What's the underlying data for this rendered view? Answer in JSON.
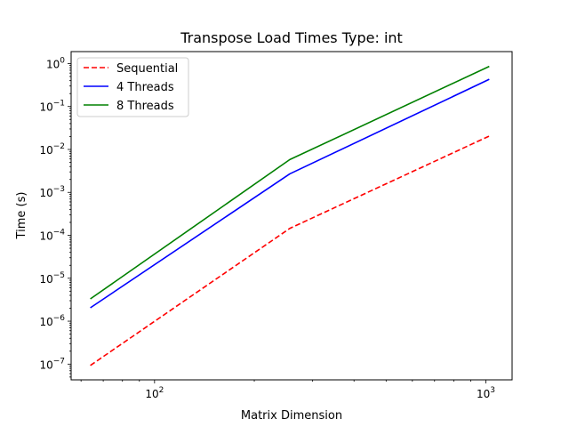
{
  "chart_data": {
    "type": "line",
    "title": "Transpose Load Times Type: int",
    "xlabel": "Matrix Dimension",
    "ylabel": "Time (s)",
    "xscale": "log",
    "yscale": "log",
    "xlim": [
      56,
      1200
    ],
    "ylim": [
      4.3e-08,
      1.9
    ],
    "x_ticks": [
      {
        "value": 100,
        "base": "10",
        "exp": "2"
      },
      {
        "value": 1000,
        "base": "10",
        "exp": "3"
      }
    ],
    "y_ticks": [
      {
        "value": 1e-07,
        "base": "10",
        "exp": "−7"
      },
      {
        "value": 1e-06,
        "base": "10",
        "exp": "−6"
      },
      {
        "value": 1e-05,
        "base": "10",
        "exp": "−5"
      },
      {
        "value": 0.0001,
        "base": "10",
        "exp": "−4"
      },
      {
        "value": 0.001,
        "base": "10",
        "exp": "−3"
      },
      {
        "value": 0.01,
        "base": "10",
        "exp": "−2"
      },
      {
        "value": 0.1,
        "base": "10",
        "exp": "−1"
      },
      {
        "value": 1,
        "base": "10",
        "exp": "0"
      }
    ],
    "x": [
      64,
      256,
      1024
    ],
    "series": [
      {
        "name": "Sequential",
        "color": "#ff0000",
        "dash": "dashed",
        "values": [
          9.3e-08,
          0.000145,
          0.0205
        ]
      },
      {
        "name": "4 Threads",
        "color": "#0000ff",
        "dash": "solid",
        "values": [
          2.05e-06,
          0.0027,
          0.43
        ]
      },
      {
        "name": "8 Threads",
        "color": "#008000",
        "dash": "solid",
        "values": [
          3.3e-06,
          0.0058,
          0.86
        ]
      }
    ],
    "legend": "top-left",
    "grid": false
  }
}
